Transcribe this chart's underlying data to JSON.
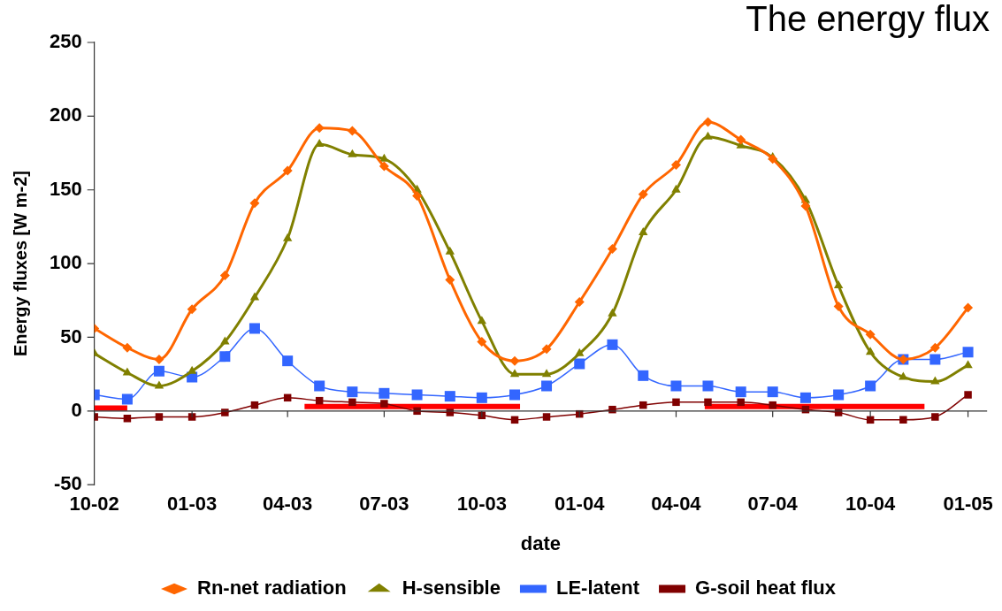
{
  "chart_data": {
    "type": "line",
    "title": "The energy flux",
    "xlabel": "date",
    "ylabel": "Energy fluxes [W m-2]",
    "x": [
      "2002-10",
      "2002-11",
      "2002-12",
      "2003-01",
      "2003-02",
      "2003-03",
      "2003-04",
      "2003-05",
      "2003-06",
      "2003-07",
      "2003-08",
      "2003-09",
      "2003-10",
      "2003-11",
      "2003-12",
      "2004-01",
      "2004-02",
      "2004-03",
      "2004-04",
      "2004-05",
      "2004-06",
      "2004-07",
      "2004-08",
      "2004-09",
      "2004-10",
      "2004-11",
      "2004-12",
      "2005-01"
    ],
    "series": [
      {
        "name": "Rn-net radiation",
        "color": "#ff6600",
        "marker": "diamond",
        "values": [
          56,
          43,
          35,
          69,
          92,
          141,
          163,
          192,
          190,
          166,
          146,
          89,
          47,
          34,
          42,
          74,
          110,
          147,
          167,
          196,
          184,
          171,
          139,
          71,
          52,
          35,
          43,
          70
        ]
      },
      {
        "name": "H-sensible",
        "color": "#808000",
        "marker": "triangle",
        "values": [
          39,
          26,
          17,
          27,
          47,
          77,
          117,
          181,
          174,
          171,
          150,
          108,
          61,
          25,
          25,
          39,
          66,
          121,
          150,
          186,
          180,
          172,
          143,
          85,
          40,
          23,
          20,
          31
        ]
      },
      {
        "name": "LE-latent",
        "color": "#3366ff",
        "marker": "square",
        "values": [
          11,
          8,
          27,
          23,
          37,
          56,
          34,
          17,
          13,
          12,
          11,
          10,
          9,
          11,
          17,
          32,
          45,
          24,
          17,
          17,
          13,
          13,
          9,
          11,
          17,
          35,
          35,
          40
        ]
      },
      {
        "name": "G-soil heat flux",
        "color": "#800000",
        "marker": "square",
        "values": [
          -4,
          -5,
          -4,
          -4,
          -1,
          4,
          9,
          7,
          6,
          5,
          0,
          -1,
          -3,
          -6,
          -4,
          -2,
          1,
          4,
          6,
          6,
          6,
          4,
          1,
          -1,
          -6,
          -6,
          -4,
          11
        ]
      },
      {
        "color": "#ff0000",
        "marker": "none",
        "x": [
          "2002-10-01",
          "2002-11-01",
          "2003-02-01",
          "2003-04-17",
          "2003-11-06",
          "2004-02-01",
          "2004-04-28",
          "2004-11-21"
        ],
        "values": [
          2,
          2,
          null,
          3,
          3,
          null,
          3,
          3
        ]
      }
    ],
    "xlim": [
      "2002-10-01",
      "2005-01-19"
    ],
    "xticks": [
      {
        "value": "2002-10-01",
        "label": "10-02"
      },
      {
        "value": "2003-01-01",
        "label": "01-03"
      },
      {
        "value": "2003-04-01",
        "label": "04-03"
      },
      {
        "value": "2003-07-01",
        "label": "07-03"
      },
      {
        "value": "2003-10-01",
        "label": "10-03"
      },
      {
        "value": "2004-01-01",
        "label": "01-04"
      },
      {
        "value": "2004-04-01",
        "label": "04-04"
      },
      {
        "value": "2004-07-01",
        "label": "07-04"
      },
      {
        "value": "2004-10-01",
        "label": "10-04"
      },
      {
        "value": "2005-01-01",
        "label": "01-05"
      }
    ],
    "ylim": [
      -50,
      250
    ],
    "yticks": [
      -50,
      0,
      50,
      100,
      150,
      200,
      250
    ],
    "legend": "bottom"
  }
}
